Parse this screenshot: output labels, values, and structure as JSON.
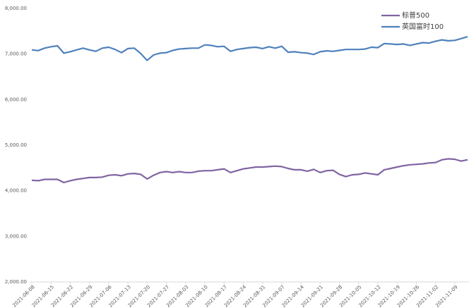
{
  "chart_data": {
    "type": "line",
    "categories": [
      "2021-06-08",
      null,
      null,
      "2021-06-15",
      null,
      null,
      "2021-06-22",
      null,
      null,
      "2021-06-29",
      null,
      null,
      "2021-07-06",
      null,
      null,
      "2021-07-13",
      null,
      null,
      "2021-07-20",
      null,
      null,
      "2021-07-27",
      null,
      null,
      "2021-08-03",
      null,
      null,
      "2021-08-10",
      null,
      null,
      "2021-08-17",
      null,
      null,
      "2021-08-24",
      null,
      null,
      "2021-08-31",
      null,
      null,
      "2021-09-07",
      null,
      null,
      "2021-09-14",
      null,
      null,
      "2021-09-21",
      null,
      null,
      "2021-09-28",
      null,
      null,
      "2021-10-05",
      null,
      null,
      "2021-10-12",
      null,
      null,
      "2021-10-19",
      null,
      null,
      "2021-10-26",
      null,
      null,
      "2021-11-02",
      null,
      null,
      "2021-11-09",
      null,
      null
    ],
    "series": [
      {
        "name": "标普500",
        "color": "#8064a2",
        "values": [
          4230,
          4220,
          4250,
          4250,
          4250,
          4180,
          4220,
          4250,
          4270,
          4290,
          4290,
          4300,
          4340,
          4350,
          4330,
          4370,
          4380,
          4360,
          4260,
          4340,
          4400,
          4420,
          4400,
          4420,
          4400,
          4400,
          4430,
          4440,
          4440,
          4460,
          4480,
          4400,
          4440,
          4480,
          4500,
          4520,
          4520,
          4530,
          4540,
          4530,
          4490,
          4460,
          4460,
          4430,
          4470,
          4400,
          4440,
          4450,
          4360,
          4310,
          4350,
          4360,
          4390,
          4370,
          4350,
          4460,
          4490,
          4520,
          4550,
          4570,
          4580,
          4590,
          4610,
          4620,
          4680,
          4700,
          4690,
          4650,
          4680
        ]
      },
      {
        "name": "英国富时100",
        "color": "#4f81bd",
        "values": [
          7090,
          7075,
          7130,
          7160,
          7180,
          7020,
          7050,
          7090,
          7130,
          7090,
          7060,
          7130,
          7150,
          7100,
          7030,
          7120,
          7130,
          7010,
          6860,
          6980,
          7020,
          7030,
          7080,
          7110,
          7120,
          7130,
          7130,
          7200,
          7190,
          7160,
          7170,
          7060,
          7100,
          7120,
          7140,
          7150,
          7120,
          7160,
          7130,
          7170,
          7040,
          7050,
          7030,
          7020,
          6990,
          7050,
          7070,
          7060,
          7080,
          7100,
          7100,
          7100,
          7110,
          7150,
          7140,
          7230,
          7220,
          7210,
          7220,
          7190,
          7220,
          7250,
          7240,
          7280,
          7310,
          7290,
          7300,
          7340,
          7380
        ]
      }
    ],
    "ylim": [
      2000,
      8000
    ],
    "yticks": [
      {
        "value": 2000,
        "label": "2,000.00"
      },
      {
        "value": 3000,
        "label": "3,000.00"
      },
      {
        "value": 4000,
        "label": "4,000.00"
      },
      {
        "value": 5000,
        "label": "5,000.00"
      },
      {
        "value": 6000,
        "label": "6,000.00"
      },
      {
        "value": 7000,
        "label": "7,000.00"
      },
      {
        "value": 8000,
        "label": "8,000.00"
      }
    ],
    "grid": false,
    "legend": "top-right"
  }
}
